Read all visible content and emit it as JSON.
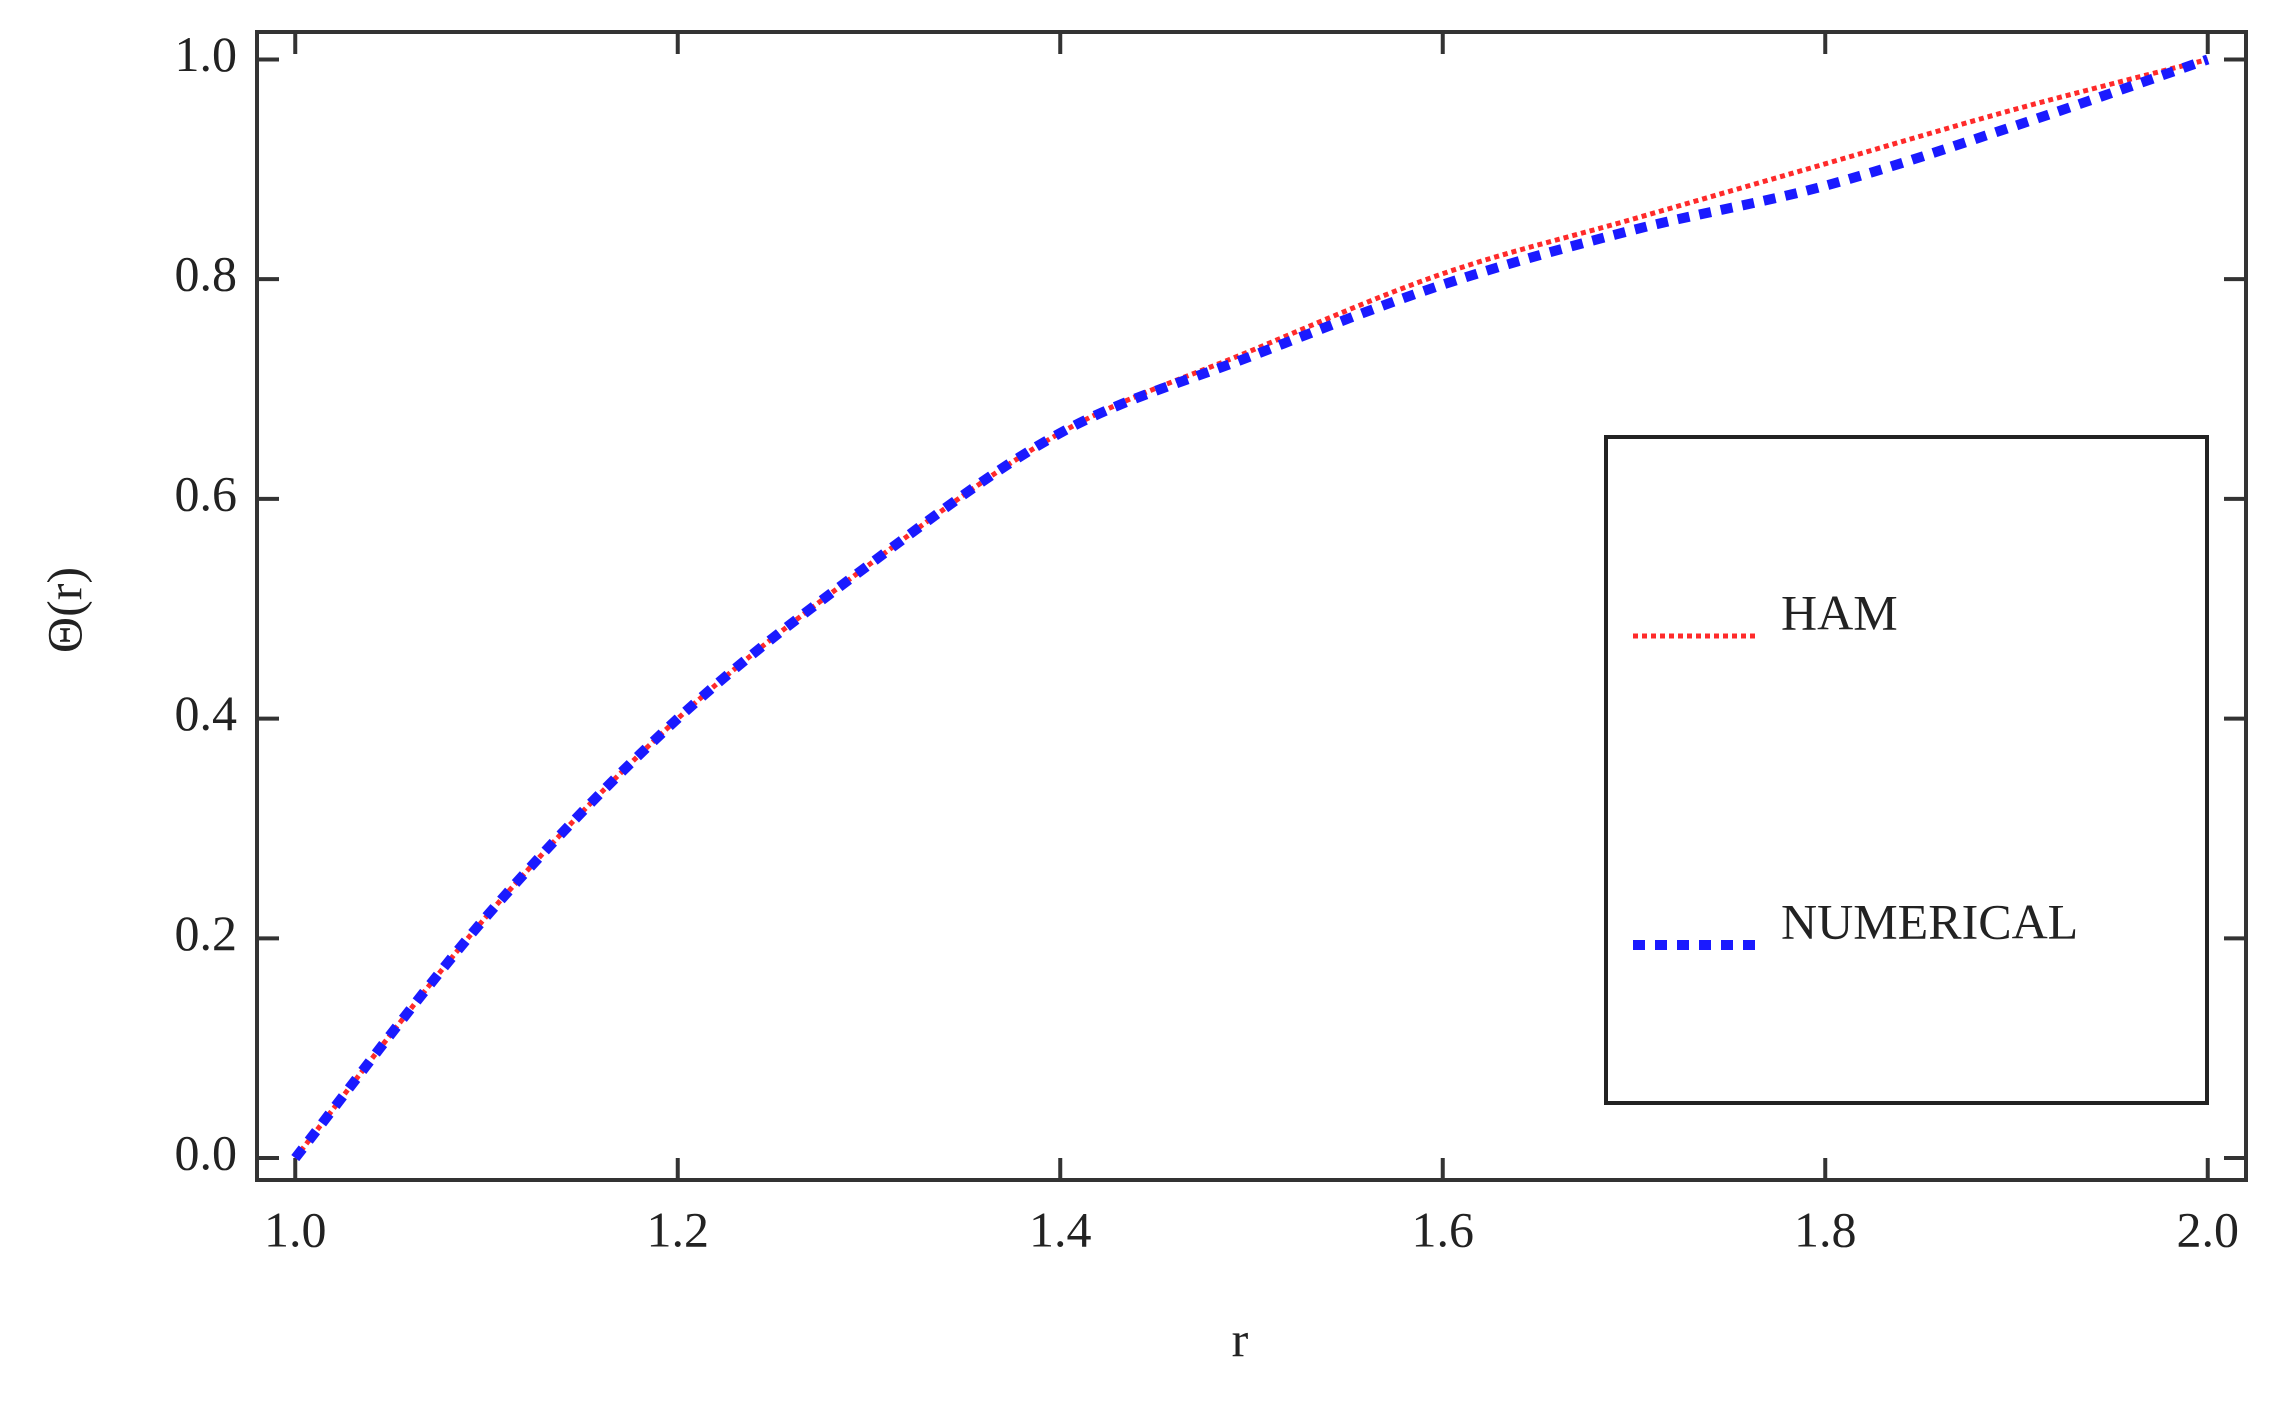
{
  "chart_data": {
    "type": "line",
    "xlabel": "r",
    "ylabel": "Θ(r)",
    "x": [
      1.0,
      1.1,
      1.2,
      1.3,
      1.4,
      1.5,
      1.6,
      1.7,
      1.8,
      1.9,
      2.0
    ],
    "series": [
      {
        "name": "HAM",
        "color": "#ff2a2a",
        "values": [
          0.0,
          0.22,
          0.4,
          0.54,
          0.66,
          0.735,
          0.805,
          0.855,
          0.905,
          0.955,
          1.0
        ]
      },
      {
        "name": "NUMERICAL",
        "color": "#1a1aff",
        "values": [
          0.0,
          0.22,
          0.4,
          0.54,
          0.66,
          0.73,
          0.795,
          0.845,
          0.885,
          0.94,
          1.0
        ]
      }
    ],
    "xlim": [
      0.98,
      2.02
    ],
    "ylim": [
      -0.02,
      1.025
    ],
    "xticks": [
      {
        "value": 1.0,
        "label": "1.0"
      },
      {
        "value": 1.2,
        "label": "1.2"
      },
      {
        "value": 1.4,
        "label": "1.4"
      },
      {
        "value": 1.6,
        "label": "1.6"
      },
      {
        "value": 1.8,
        "label": "1.8"
      },
      {
        "value": 2.0,
        "label": "2.0"
      }
    ],
    "yticks": [
      {
        "value": 0.0,
        "label": "0.0"
      },
      {
        "value": 0.2,
        "label": "0.2"
      },
      {
        "value": 0.4,
        "label": "0.4"
      },
      {
        "value": 0.6,
        "label": "0.6"
      },
      {
        "value": 0.8,
        "label": "0.8"
      },
      {
        "value": 1.0,
        "label": "1.0"
      }
    ],
    "legend": "right"
  }
}
